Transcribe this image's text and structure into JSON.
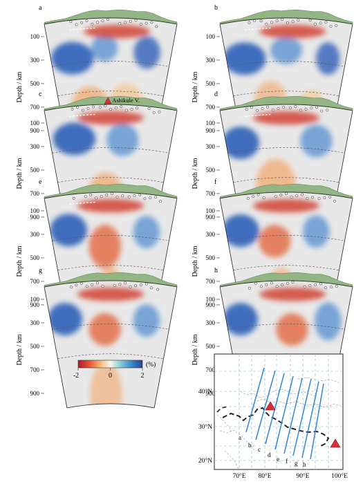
{
  "panels": [
    {
      "letter": "a",
      "volcano": ""
    },
    {
      "letter": "b",
      "volcano": ""
    },
    {
      "letter": "c",
      "volcano": "Ashikule V."
    },
    {
      "letter": "d",
      "volcano": ""
    },
    {
      "letter": "e",
      "volcano": ""
    },
    {
      "letter": "f",
      "volcano": ""
    },
    {
      "letter": "g",
      "volcano": ""
    },
    {
      "letter": "h",
      "volcano": ""
    }
  ],
  "depth_axis": {
    "label": "Depth / km",
    "ticks": [
      "100",
      "300",
      "500",
      "700",
      "900"
    ]
  },
  "colorbar": {
    "min": "-2",
    "mid": "0",
    "max": "2",
    "unit": "(%)"
  },
  "map": {
    "lat_ticks": [
      "20°N",
      "30°N",
      "40°N"
    ],
    "lon_ticks": [
      "70°E",
      "80°E",
      "90°E",
      "100°E"
    ],
    "profiles": [
      "a",
      "b",
      "c",
      "d",
      "e",
      "f",
      "g",
      "h"
    ]
  },
  "colors": {
    "slow": "#c21f1f",
    "fast": "#2b5bb8",
    "topo": "#93b583",
    "volcano": "#d7303b",
    "profile_line": "#3b8ad2"
  }
}
